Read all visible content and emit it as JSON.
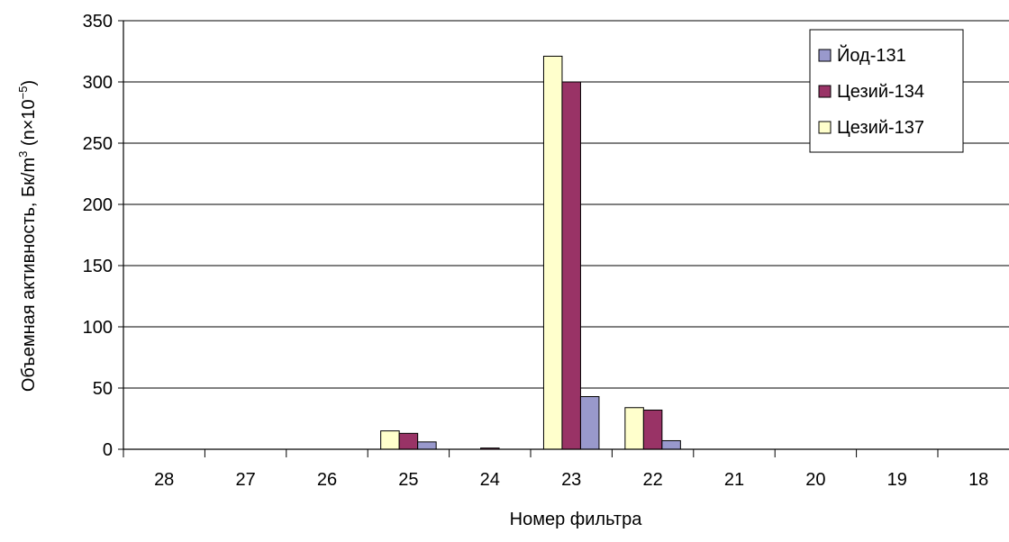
{
  "chart_data": {
    "type": "bar",
    "title": "",
    "xlabel": "Номер фильтра",
    "ylabel": "Объемная активность, Бк/m³ (n×10⁻⁵)",
    "ylabel_parts": {
      "main": "Объемная активность, Бк/m",
      "sup1": "3",
      "mid": " (n×10",
      "sup2": "−5",
      "end": ")"
    },
    "categories": [
      "28",
      "27",
      "26",
      "25",
      "24",
      "23",
      "22",
      "21",
      "20",
      "19",
      "18"
    ],
    "ylim": [
      0,
      350
    ],
    "yticks": [
      0,
      50,
      100,
      150,
      200,
      250,
      300,
      350
    ],
    "grid": true,
    "legend_position": "top-right",
    "draw_order": [
      "Цезий-137",
      "Цезий-134",
      "Йод-131"
    ],
    "series": [
      {
        "name": "Йод-131",
        "color": "#9999CC",
        "values": [
          0,
          0,
          0,
          6,
          0,
          43,
          7,
          0,
          0,
          0,
          0
        ]
      },
      {
        "name": "Цезий-134",
        "color": "#993366",
        "values": [
          0,
          0,
          0,
          13,
          1,
          300,
          32,
          0,
          0,
          0,
          0
        ]
      },
      {
        "name": "Цезий-137",
        "color": "#FFFFCC",
        "values": [
          0,
          0,
          0,
          15,
          0,
          321,
          34,
          0,
          0,
          0,
          0
        ]
      }
    ]
  }
}
